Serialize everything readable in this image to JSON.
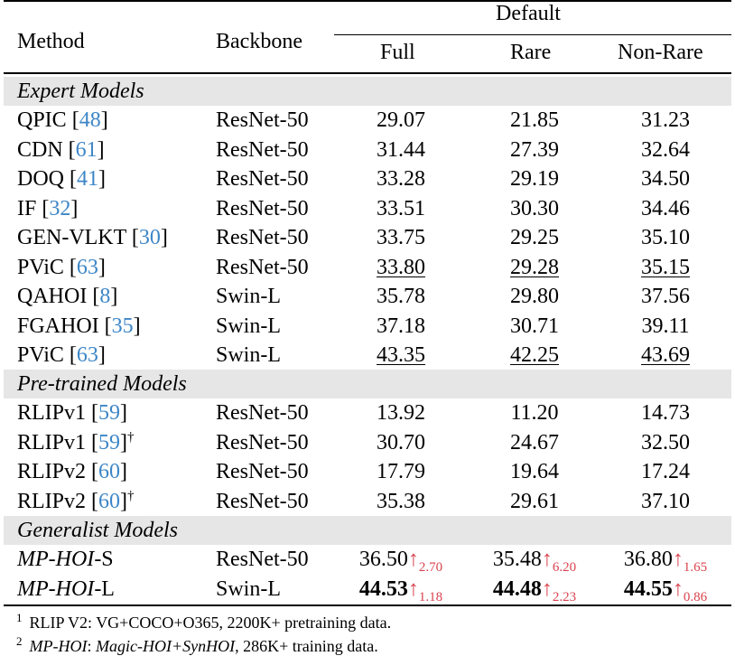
{
  "header": {
    "method": "Method",
    "backbone": "Backbone",
    "group": "Default",
    "full": "Full",
    "rare": "Rare",
    "nonrare": "Non-Rare"
  },
  "sections": [
    {
      "title": "Expert Models",
      "rows": [
        {
          "name": "QPIC",
          "ref": "48",
          "dagger": "",
          "backbone": "ResNet-50",
          "full": "29.07",
          "rare": "21.85",
          "nonrare": "31.23"
        },
        {
          "name": "CDN",
          "ref": "61",
          "dagger": "",
          "backbone": "ResNet-50",
          "full": "31.44",
          "rare": "27.39",
          "nonrare": "32.64"
        },
        {
          "name": "DOQ",
          "ref": "41",
          "dagger": "",
          "backbone": "ResNet-50",
          "full": "33.28",
          "rare": "29.19",
          "nonrare": "34.50"
        },
        {
          "name": "IF",
          "ref": "32",
          "dagger": "",
          "backbone": "ResNet-50",
          "full": "33.51",
          "rare": "30.30",
          "nonrare": "34.46"
        },
        {
          "name": "GEN-VLKT",
          "ref": "30",
          "dagger": "",
          "backbone": "ResNet-50",
          "full": "33.75",
          "rare": "29.25",
          "nonrare": "35.10"
        },
        {
          "name": "PViC",
          "ref": "63",
          "dagger": "",
          "backbone": "ResNet-50",
          "full": "33.80",
          "rare": "29.28",
          "nonrare": "35.15"
        },
        {
          "name": "QAHOI",
          "ref": "8",
          "dagger": "",
          "backbone": "Swin-L",
          "full": "35.78",
          "rare": "29.80",
          "nonrare": "37.56"
        },
        {
          "name": "FGAHOI",
          "ref": "35",
          "dagger": "",
          "backbone": "Swin-L",
          "full": "37.18",
          "rare": "30.71",
          "nonrare": "39.11"
        },
        {
          "name": "PViC",
          "ref": "63",
          "dagger": "",
          "backbone": "Swin-L",
          "full": "43.35",
          "rare": "42.25",
          "nonrare": "43.69"
        }
      ]
    },
    {
      "title": "Pre-trained Models",
      "rows": [
        {
          "name": "RLIPv1",
          "ref": "59",
          "dagger": "",
          "backbone": "ResNet-50",
          "full": "13.92",
          "rare": "11.20",
          "nonrare": "14.73"
        },
        {
          "name": "RLIPv1",
          "ref": "59",
          "dagger": "†",
          "backbone": "ResNet-50",
          "full": "30.70",
          "rare": "24.67",
          "nonrare": "32.50"
        },
        {
          "name": "RLIPv2",
          "ref": "60",
          "dagger": "",
          "backbone": "ResNet-50",
          "full": "17.79",
          "rare": "19.64",
          "nonrare": "17.24"
        },
        {
          "name": "RLIPv2",
          "ref": "60",
          "dagger": "†",
          "backbone": "ResNet-50",
          "full": "35.38",
          "rare": "29.61",
          "nonrare": "37.10"
        }
      ]
    },
    {
      "title": "Generalist Models",
      "rows": [
        {
          "name_it": "MP-HOI",
          "name_suffix": "-S",
          "backbone": "ResNet-50",
          "full": "36.50",
          "full_gain": "2.70",
          "rare": "35.48",
          "rare_gain": "6.20",
          "nonrare": "36.80",
          "nonrare_gain": "1.65"
        },
        {
          "name_it": "MP-HOI",
          "name_suffix": "-L",
          "backbone": "Swin-L",
          "full": "44.53",
          "full_gain": "1.18",
          "rare": "44.48",
          "rare_gain": "2.23",
          "nonrare": "44.55",
          "nonrare_gain": "0.86"
        }
      ]
    }
  ],
  "arrow": "↑",
  "notes": [
    {
      "num": "1",
      "text": "RLIP V2: VG+COCO+O365, 2200K+ pretraining data."
    },
    {
      "num": "2",
      "it1": "MP-HOI",
      "mid": ": ",
      "it2": "Magic-HOI+SynHOI",
      "tail": ", 286K+ training data."
    }
  ]
}
